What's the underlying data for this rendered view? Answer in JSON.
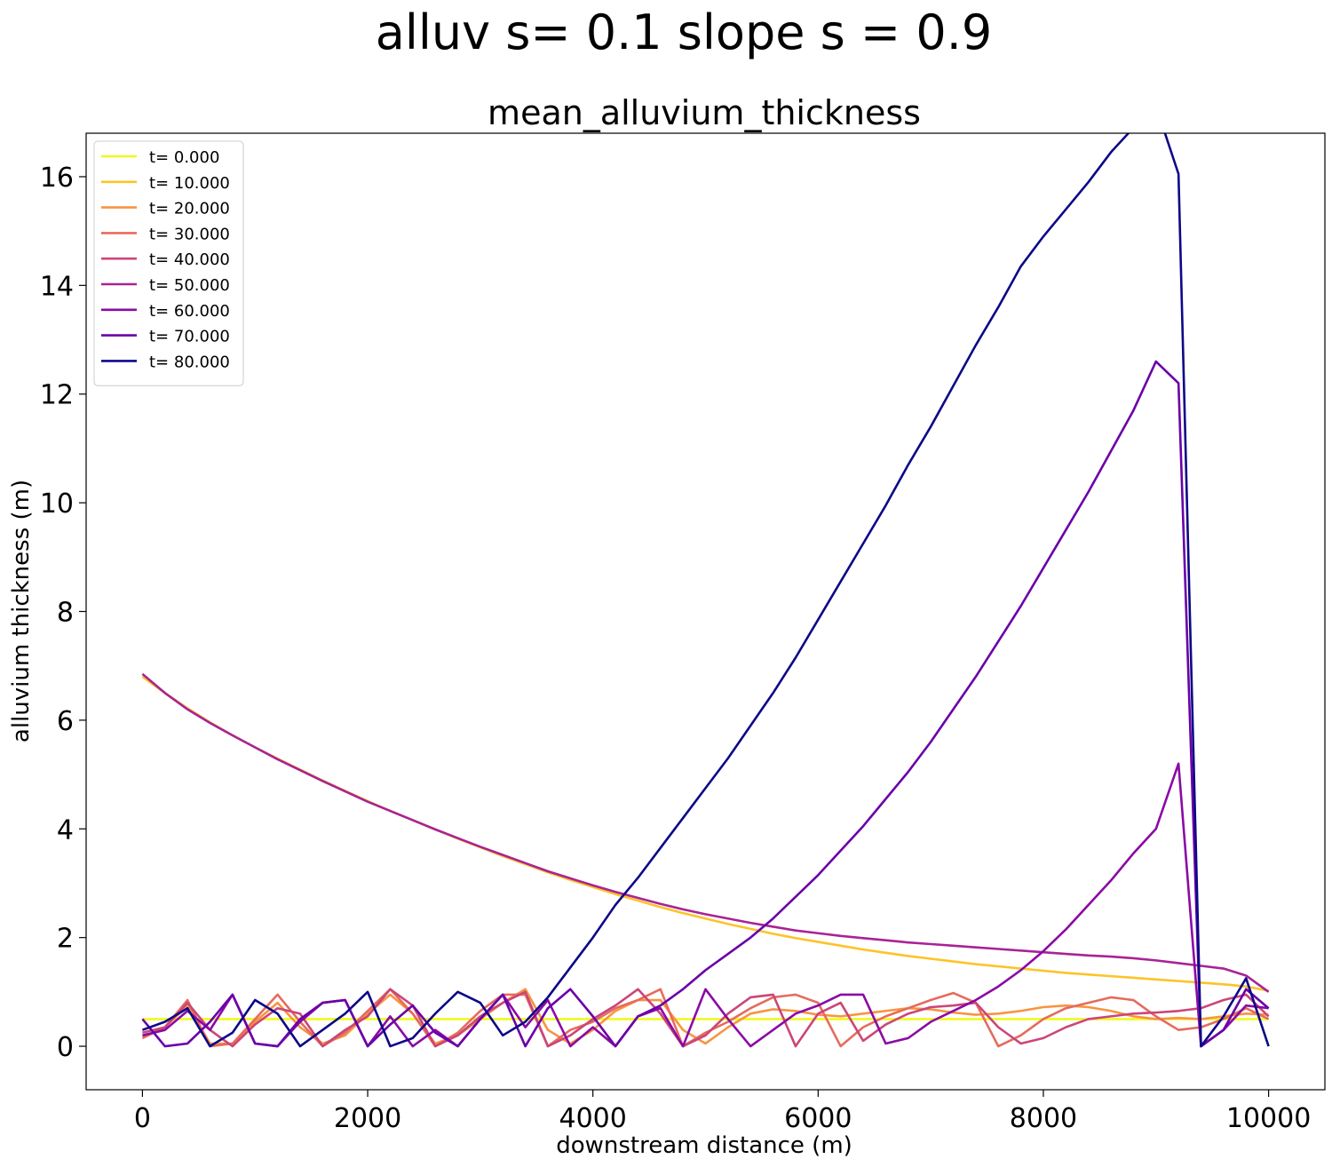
{
  "suptitle": "alluv s= 0.1     slope s = 0.9",
  "chart_data": {
    "type": "line",
    "title": "mean_alluvium_thickness",
    "xlabel": "downstream distance (m)",
    "ylabel": "alluvium thickness (m)",
    "xlim": [
      -500,
      10500
    ],
    "ylim": [
      -0.8,
      16.8
    ],
    "xticks": [
      0,
      2000,
      4000,
      6000,
      8000,
      10000
    ],
    "yticks": [
      0,
      2,
      4,
      6,
      8,
      10,
      12,
      14,
      16
    ],
    "grid": false,
    "legend_position": "upper-left",
    "series": [
      {
        "name": "t= 0.000",
        "color": "#f0f921",
        "x": [
          0,
          10000
        ],
        "y": [
          0.5,
          0.5
        ]
      },
      {
        "name": "t= 10.000",
        "color": "#fdc328",
        "x": [
          0,
          200,
          400,
          600,
          800,
          1000,
          1200,
          1400,
          1600,
          1800,
          2000,
          2200,
          2400,
          2600,
          2800,
          3000,
          3200,
          3400,
          3600,
          3800,
          4000,
          4200,
          4400,
          4600,
          4800,
          5000,
          5200,
          5400,
          5600,
          5800,
          6000,
          6200,
          6400,
          6600,
          6800,
          7000,
          7200,
          7400,
          7600,
          7800,
          8000,
          8200,
          8400,
          8600,
          8800,
          9000,
          9200,
          9400,
          9600,
          9800,
          10000
        ],
        "y": [
          6.8,
          6.5,
          6.22,
          5.96,
          5.72,
          5.5,
          5.29,
          5.09,
          4.89,
          4.7,
          4.51,
          4.33,
          4.16,
          3.99,
          3.82,
          3.66,
          3.5,
          3.35,
          3.2,
          3.06,
          2.93,
          2.8,
          2.68,
          2.56,
          2.45,
          2.35,
          2.25,
          2.16,
          2.07,
          1.99,
          1.92,
          1.85,
          1.78,
          1.72,
          1.66,
          1.61,
          1.56,
          1.51,
          1.47,
          1.43,
          1.39,
          1.35,
          1.32,
          1.29,
          1.26,
          1.23,
          1.2,
          1.17,
          1.14,
          1.1,
          1.02
        ]
      },
      {
        "name": "t= 20.000",
        "color": "#f89441",
        "x": [
          0,
          200,
          400,
          600,
          800,
          1000,
          1200,
          1400,
          1600,
          1800,
          2000,
          2200,
          2400,
          2600,
          2800,
          3000,
          3200,
          3400,
          3600,
          3800,
          4000,
          4200,
          4400,
          4600,
          4800,
          5000,
          5200,
          5400,
          5600,
          5800,
          6000,
          6200,
          6400,
          6600,
          6800,
          7000,
          7200,
          7400,
          7600,
          7800,
          8000,
          8200,
          8400,
          8600,
          8800,
          9000,
          9200,
          9400,
          9600,
          9800,
          10000
        ],
        "y": [
          0.15,
          0.35,
          0.75,
          0.05,
          0.05,
          0.45,
          0.8,
          0.35,
          0.05,
          0.2,
          0.6,
          0.95,
          0.6,
          0.05,
          0.2,
          0.5,
          0.8,
          1.05,
          0.3,
          0.05,
          0.3,
          0.65,
          0.85,
          0.85,
          0.3,
          0.05,
          0.35,
          0.6,
          0.68,
          0.65,
          0.58,
          0.55,
          0.6,
          0.65,
          0.7,
          0.68,
          0.62,
          0.58,
          0.6,
          0.65,
          0.72,
          0.75,
          0.72,
          0.65,
          0.55,
          0.5,
          0.52,
          0.5,
          0.55,
          0.6,
          0.58
        ]
      },
      {
        "name": "t= 30.000",
        "color": "#e56b5d",
        "x": [
          0,
          200,
          400,
          600,
          800,
          1000,
          1200,
          1400,
          1600,
          1800,
          2000,
          2200,
          2400,
          2600,
          2800,
          3000,
          3200,
          3400,
          3600,
          3800,
          4000,
          4200,
          4400,
          4600,
          4800,
          5000,
          5200,
          5400,
          5600,
          5800,
          6000,
          6200,
          6400,
          6600,
          6800,
          7000,
          7200,
          7400,
          7600,
          7800,
          8000,
          8200,
          8400,
          8600,
          8800,
          9000,
          9200,
          9400,
          9600,
          9800,
          10000
        ],
        "y": [
          0.15,
          0.35,
          0.85,
          0.0,
          0.05,
          0.5,
          0.95,
          0.45,
          0.0,
          0.25,
          0.65,
          1.05,
          0.6,
          0.0,
          0.25,
          0.65,
          0.95,
          0.95,
          0.0,
          0.3,
          0.45,
          0.7,
          0.85,
          1.05,
          0.0,
          0.25,
          0.45,
          0.7,
          0.9,
          0.95,
          0.8,
          0.0,
          0.35,
          0.55,
          0.7,
          0.85,
          0.98,
          0.8,
          0.0,
          0.2,
          0.5,
          0.7,
          0.8,
          0.9,
          0.85,
          0.55,
          0.3,
          0.35,
          0.5,
          0.7,
          0.5
        ]
      },
      {
        "name": "t= 40.000",
        "color": "#cb4679",
        "x": [
          0,
          200,
          400,
          600,
          800,
          1000,
          1200,
          1400,
          1600,
          1800,
          2000,
          2200,
          2400,
          2600,
          2800,
          3000,
          3200,
          3400,
          3600,
          3800,
          4000,
          4200,
          4400,
          4600,
          4800,
          5000,
          5200,
          5400,
          5600,
          5800,
          6000,
          6200,
          6400,
          6600,
          6800,
          7000,
          7200,
          7400,
          7600,
          7800,
          8000,
          8200,
          8400,
          8600,
          8800,
          9000,
          9200,
          9400,
          9600,
          9800,
          10000
        ],
        "y": [
          0.25,
          0.35,
          0.8,
          0.3,
          0.0,
          0.4,
          0.7,
          0.6,
          0.0,
          0.3,
          0.55,
          1.05,
          0.75,
          0.0,
          0.2,
          0.55,
          0.8,
          1.0,
          0.0,
          0.2,
          0.5,
          0.75,
          1.05,
          0.6,
          0.0,
          0.2,
          0.6,
          0.9,
          0.95,
          0.0,
          0.6,
          0.8,
          0.1,
          0.4,
          0.6,
          0.72,
          0.75,
          0.8,
          0.35,
          0.05,
          0.15,
          0.35,
          0.5,
          0.55,
          0.6,
          0.62,
          0.65,
          0.7,
          0.85,
          0.95,
          0.55
        ]
      },
      {
        "name": "t= 50.000",
        "color": "#a92395",
        "x": [
          0,
          200,
          400,
          600,
          800,
          1000,
          1200,
          1400,
          1600,
          1800,
          2000,
          2200,
          2400,
          2600,
          2800,
          3000,
          3200,
          3400,
          3600,
          3800,
          4000,
          4200,
          4400,
          4600,
          4800,
          5000,
          5200,
          5400,
          5600,
          5800,
          6000,
          6200,
          6400,
          6600,
          6800,
          7000,
          7200,
          7400,
          7600,
          7800,
          8000,
          8200,
          8400,
          8600,
          8800,
          9000,
          9200,
          9400,
          9600,
          9800,
          10000
        ],
        "y": [
          6.85,
          6.5,
          6.2,
          5.95,
          5.72,
          5.5,
          5.28,
          5.08,
          4.88,
          4.69,
          4.5,
          4.33,
          4.16,
          3.99,
          3.83,
          3.67,
          3.52,
          3.37,
          3.22,
          3.09,
          2.96,
          2.84,
          2.73,
          2.62,
          2.52,
          2.43,
          2.35,
          2.27,
          2.2,
          2.13,
          2.08,
          2.03,
          1.99,
          1.95,
          1.91,
          1.88,
          1.85,
          1.82,
          1.79,
          1.76,
          1.73,
          1.7,
          1.67,
          1.65,
          1.62,
          1.58,
          1.53,
          1.48,
          1.43,
          1.3,
          1.0
        ]
      },
      {
        "name": "t= 60.000",
        "color": "#8b0aa5",
        "x": [
          0,
          200,
          400,
          600,
          800,
          1000,
          1200,
          1400,
          1600,
          1800,
          2000,
          2200,
          2400,
          2600,
          2800,
          3000,
          3200,
          3400,
          3600,
          3800,
          4000,
          4200,
          4400,
          4600,
          4800,
          5000,
          5200,
          5400,
          5600,
          5800,
          6000,
          6200,
          6400,
          6600,
          6800,
          7000,
          7200,
          7400,
          7600,
          7800,
          8000,
          8200,
          8400,
          8600,
          8800,
          9000,
          9200,
          9400,
          9600,
          9800,
          10000
        ],
        "y": [
          0.2,
          0.3,
          0.65,
          0.3,
          0.95,
          0.05,
          0.0,
          0.45,
          0.8,
          0.85,
          0.0,
          0.55,
          0.0,
          0.3,
          0.0,
          0.5,
          0.95,
          0.35,
          0.85,
          0.0,
          0.35,
          0.0,
          0.55,
          0.7,
          0.0,
          1.05,
          0.5,
          0.0,
          0.3,
          0.6,
          0.75,
          0.95,
          0.95,
          0.05,
          0.15,
          0.45,
          0.65,
          0.85,
          1.1,
          1.4,
          1.75,
          2.15,
          2.6,
          3.05,
          3.55,
          4.0,
          5.2,
          0.0,
          0.3,
          0.75,
          0.7
        ]
      },
      {
        "name": "t= 70.000",
        "color": "#6a00a8",
        "x": [
          0,
          200,
          400,
          600,
          800,
          1000,
          1200,
          1400,
          1600,
          1800,
          2000,
          2200,
          2400,
          2600,
          2800,
          3000,
          3200,
          3400,
          3600,
          3800,
          4000,
          4200,
          4400,
          4600,
          4800,
          5000,
          5200,
          5400,
          5600,
          5800,
          6000,
          6200,
          6400,
          6600,
          6800,
          7000,
          7200,
          7400,
          7600,
          7800,
          8000,
          8200,
          8400,
          8600,
          8800,
          9000,
          9200,
          9400,
          9600,
          9800,
          10000
        ],
        "y": [
          0.5,
          0.0,
          0.05,
          0.45,
          0.95,
          0.05,
          0.0,
          0.5,
          0.8,
          0.85,
          0.0,
          0.4,
          0.75,
          0.25,
          0.0,
          0.5,
          0.95,
          0.0,
          0.7,
          1.05,
          0.55,
          0.0,
          0.55,
          0.75,
          1.05,
          1.4,
          1.7,
          2.0,
          2.35,
          2.75,
          3.15,
          3.6,
          4.05,
          4.55,
          5.05,
          5.6,
          6.2,
          6.8,
          7.45,
          8.1,
          8.8,
          9.5,
          10.2,
          10.95,
          11.7,
          12.6,
          12.2,
          0.0,
          0.3,
          1.05,
          0.7
        ]
      },
      {
        "name": "t= 80.000",
        "color": "#0d0887",
        "x": [
          0,
          200,
          400,
          600,
          800,
          1000,
          1200,
          1400,
          1600,
          1800,
          2000,
          2200,
          2400,
          2600,
          2800,
          3000,
          3200,
          3400,
          3600,
          3800,
          4000,
          4200,
          4400,
          4600,
          4800,
          5000,
          5200,
          5400,
          5600,
          5800,
          6000,
          6200,
          6400,
          6600,
          6800,
          7000,
          7200,
          7400,
          7600,
          7800,
          8000,
          8200,
          8400,
          8600,
          8800,
          9000,
          9200,
          9400,
          9600,
          9800,
          10000
        ],
        "y": [
          0.3,
          0.45,
          0.7,
          0.0,
          0.25,
          0.85,
          0.6,
          0.0,
          0.3,
          0.6,
          1.0,
          0.0,
          0.15,
          0.6,
          1.0,
          0.8,
          0.2,
          0.45,
          0.9,
          1.45,
          2.0,
          2.6,
          3.1,
          3.65,
          4.2,
          4.75,
          5.3,
          5.9,
          6.5,
          7.15,
          7.85,
          8.55,
          9.25,
          9.95,
          10.7,
          11.4,
          12.15,
          12.9,
          13.6,
          14.35,
          14.9,
          15.4,
          15.9,
          16.45,
          16.9,
          17.3,
          16.05,
          0.0,
          0.55,
          1.25,
          0.0
        ]
      }
    ]
  }
}
